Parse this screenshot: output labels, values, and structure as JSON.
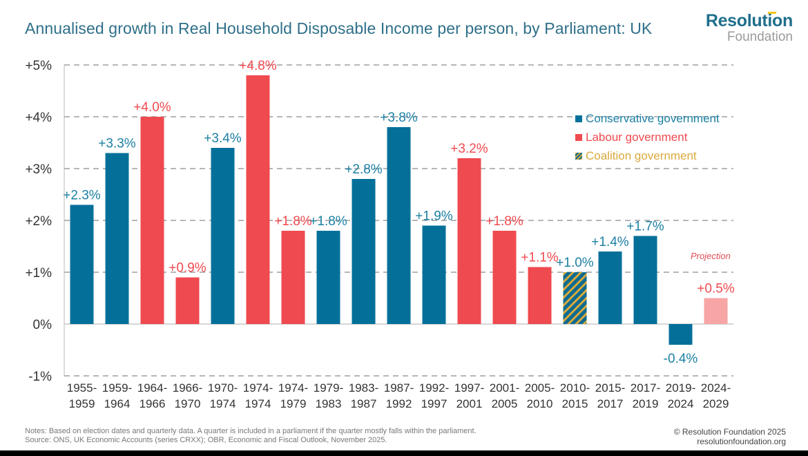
{
  "title": "Annualised growth in Real Household Disposable Income per person, by Parliament: UK",
  "logo": {
    "line1": "Resolution",
    "line2": "Foundation"
  },
  "colors": {
    "conservative": "#04709a",
    "labour": "#ef4a4f",
    "coalition_a": "#0e6b8f",
    "coalition_b": "#d9a93c",
    "projection": "#f7a5a5",
    "grid": "#9e9e9e",
    "axis": "#c8c8c8"
  },
  "legend": [
    {
      "key": "conservative",
      "label": "Conservative government",
      "color": "#1b7fa3"
    },
    {
      "key": "labour",
      "label": "Labour government",
      "color": "#ef4a4f"
    },
    {
      "key": "coalition",
      "label": "Coalition government",
      "color": "#d9a93c"
    }
  ],
  "projection_label": "Projection",
  "notes": {
    "line1": "Notes: Based on election dates and quarterly data. A quarter is included in a parliament if the quarter mostly falls within the parliament.",
    "line2": "Source: ONS, UK Economic Accounts (series CRXX); OBR, Economic and Fiscal Outlook, November 2025."
  },
  "credits": {
    "line1": "© Resolution Foundation 2025",
    "line2": "resolutionfoundation.org"
  },
  "chart_data": {
    "type": "bar",
    "title": "Annualised growth in Real Household Disposable Income per person, by Parliament: UK",
    "xlabel": "",
    "ylabel": "",
    "ylim": [
      -1,
      5
    ],
    "yticks": [
      5,
      4,
      3,
      2,
      1,
      0,
      -1
    ],
    "ytick_labels": [
      "+5%",
      "+4%",
      "+3%",
      "+2%",
      "+1%",
      "0%",
      "-1%"
    ],
    "grid": true,
    "legend_position": "right",
    "categories": [
      [
        "1955-",
        "1959"
      ],
      [
        "1959-",
        "1964"
      ],
      [
        "1964-",
        "1966"
      ],
      [
        "1966-",
        "1970"
      ],
      [
        "1970-",
        "1974"
      ],
      [
        "1974-",
        "1974"
      ],
      [
        "1974-",
        "1979"
      ],
      [
        "1979-",
        "1983"
      ],
      [
        "1983-",
        "1987"
      ],
      [
        "1987-",
        "1992"
      ],
      [
        "1992-",
        "1997"
      ],
      [
        "1997-",
        "2001"
      ],
      [
        "2001-",
        "2005"
      ],
      [
        "2005-",
        "2010"
      ],
      [
        "2010-",
        "2015"
      ],
      [
        "2015-",
        "2017"
      ],
      [
        "2017-",
        "2019"
      ],
      [
        "2019-",
        "2024"
      ],
      [
        "2024-",
        "2029"
      ]
    ],
    "values": [
      2.3,
      3.3,
      4.0,
      0.9,
      3.4,
      4.8,
      1.8,
      1.8,
      2.8,
      3.8,
      1.9,
      3.2,
      1.8,
      1.1,
      1.0,
      1.4,
      1.7,
      -0.4,
      0.5
    ],
    "labels": [
      "+2.3%",
      "+3.3%",
      "+4.0%",
      "+0.9%",
      "+3.4%",
      "+4.8%",
      "+1.8%",
      "+1.8%",
      "+2.8%",
      "+3.8%",
      "+1.9%",
      "+3.2%",
      "+1.8%",
      "+1.1%",
      "+1.0%",
      "+1.4%",
      "+1.7%",
      "-0.4%",
      "+0.5%"
    ],
    "government": [
      "conservative",
      "conservative",
      "labour",
      "labour",
      "conservative",
      "labour",
      "labour",
      "conservative",
      "conservative",
      "conservative",
      "conservative",
      "labour",
      "labour",
      "labour",
      "coalition",
      "conservative",
      "conservative",
      "conservative",
      "projection"
    ]
  }
}
